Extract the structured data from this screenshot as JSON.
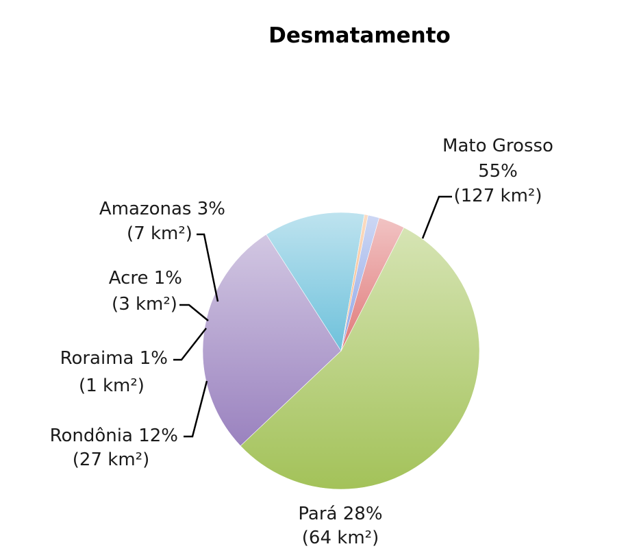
{
  "chart_data": {
    "type": "pie",
    "title": "Desmatamento",
    "slices": [
      {
        "state": "Mato Grosso",
        "percent_label": "55%",
        "area_label": "(127 km²)",
        "value": 127,
        "color": "#a3c259"
      },
      {
        "state": "Pará",
        "percent_label": "28%",
        "area_label": "(64 km²)",
        "value": 64,
        "color": "#9a82bf"
      },
      {
        "state": "Rondônia",
        "percent_label": "12%",
        "area_label": "(27 km²)",
        "value": 27,
        "color": "#6ec1db"
      },
      {
        "state": "Roraima",
        "percent_label": "1%",
        "area_label": "(1 km²)",
        "value": 1,
        "color": "#f5b27a"
      },
      {
        "state": "Acre",
        "percent_label": "1%",
        "area_label": "(3 km²)",
        "value": 3,
        "color": "#8fa7e6"
      },
      {
        "state": "Amazonas",
        "percent_label": "3%",
        "area_label": "(7 km²)",
        "value": 7,
        "color": "#e07a7a"
      }
    ]
  }
}
